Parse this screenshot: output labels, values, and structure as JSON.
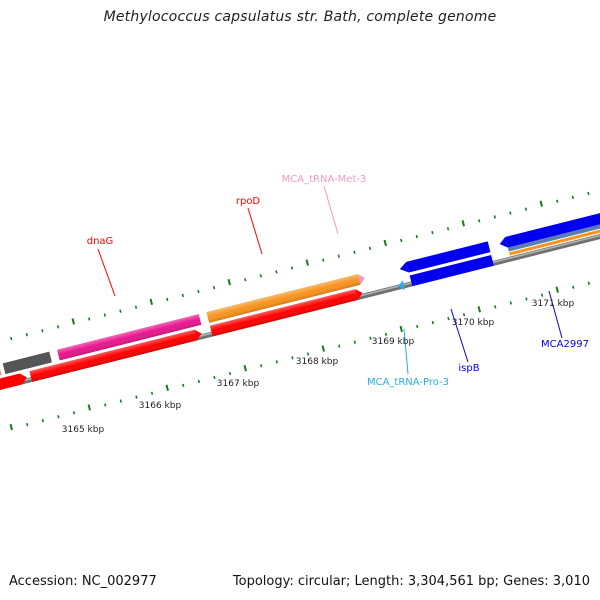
{
  "map": {
    "title": "Methylococcus capsulatus str. Bath, complete genome",
    "accession": "Accession: NC_002977",
    "summary": "Topology: circular; Length: 3,304,561 bp; Genes: 3,010"
  },
  "scale": {
    "labels": [
      "3165 kbp",
      "3166 kbp",
      "3167 kbp",
      "3168 kbp",
      "3169 kbp",
      "3170 kbp",
      "3171 kbp"
    ]
  },
  "genes": {
    "dnaG": "dnaG",
    "rpoD": "rpoD",
    "tRNA_Met": "MCA_tRNA-Met-3",
    "tRNA_Pro": "MCA_tRNA-Pro-3",
    "ispB": "ispB",
    "MCA2997": "MCA2997"
  },
  "colors": {
    "dnaG": "#e8168e",
    "rpoD": "#f7931e",
    "forward_cds": "#ff0000",
    "reverse_cds": "#0000ee",
    "tRNA_Met": "#f29ac4",
    "tRNA_Pro": "#29aee0",
    "gray_gene": "#555555",
    "steel_gene": "#5a7fae",
    "backbone": "#8c8c8c",
    "tick": "#1a7a1a"
  }
}
